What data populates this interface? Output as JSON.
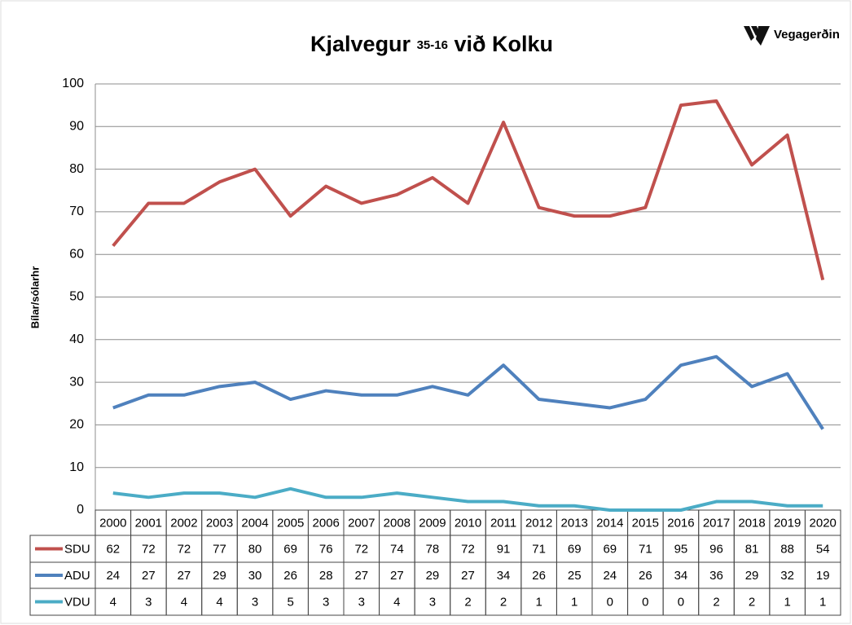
{
  "chart_data": {
    "type": "line",
    "title_parts": [
      "Kjalvegur",
      "35-16",
      "við Kolku"
    ],
    "logo": "Vegagerðin",
    "y_label": "Bílar/sólarhr",
    "categories": [
      "2000",
      "2001",
      "2002",
      "2003",
      "2004",
      "2005",
      "2006",
      "2007",
      "2008",
      "2009",
      "2010",
      "2011",
      "2012",
      "2013",
      "2014",
      "2015",
      "2016",
      "2017",
      "2018",
      "2019",
      "2020"
    ],
    "series": [
      {
        "name": "SDU",
        "color": "#c0504d",
        "values": [
          62,
          72,
          72,
          77,
          80,
          69,
          76,
          72,
          74,
          78,
          72,
          91,
          71,
          69,
          69,
          71,
          95,
          96,
          81,
          88,
          54
        ]
      },
      {
        "name": "ADU",
        "color": "#4f81bd",
        "values": [
          24,
          27,
          27,
          29,
          30,
          26,
          28,
          27,
          27,
          29,
          27,
          34,
          26,
          25,
          24,
          26,
          34,
          36,
          29,
          32,
          19
        ]
      },
      {
        "name": "VDU",
        "color": "#4bacc6",
        "values": [
          4,
          3,
          4,
          4,
          3,
          5,
          3,
          3,
          4,
          3,
          2,
          2,
          1,
          1,
          0,
          0,
          0,
          2,
          2,
          1,
          1
        ]
      }
    ],
    "ylim": [
      0,
      100
    ],
    "yticks": [
      0,
      10,
      20,
      30,
      40,
      50,
      60,
      70,
      80,
      90,
      100
    ],
    "grid": true
  }
}
